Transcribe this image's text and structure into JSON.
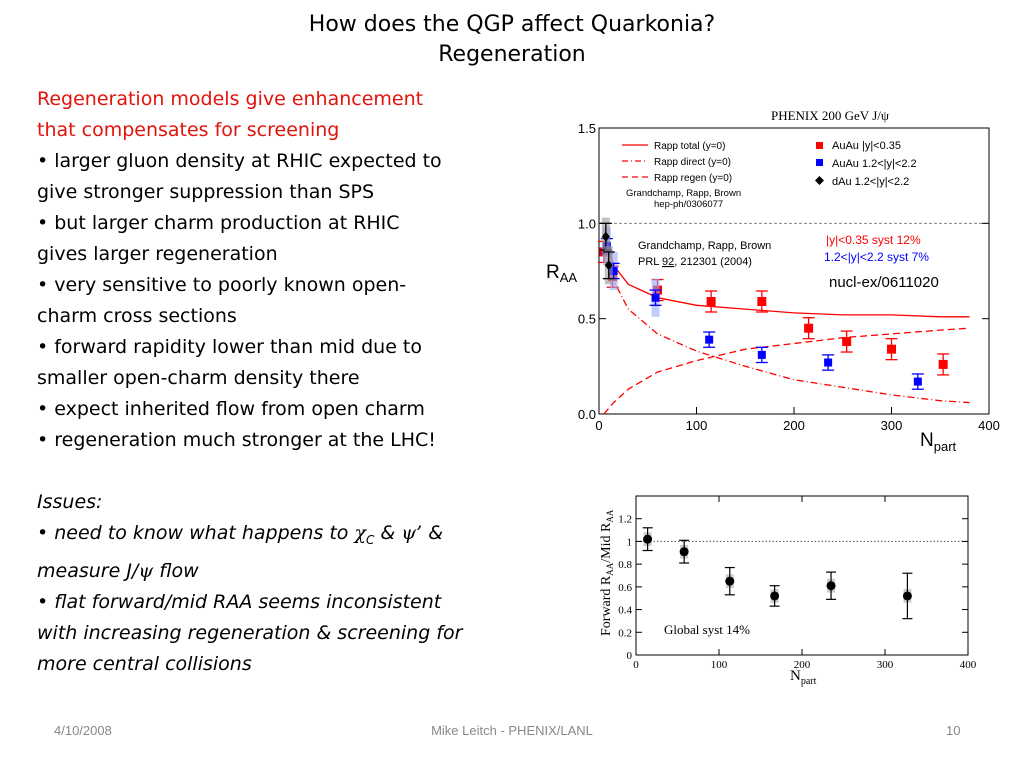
{
  "slide": {
    "title_line1": "How does the QGP affect Quarkonia?",
    "title_line2": "Regeneration",
    "red_line1": "Regeneration models give enhancement",
    "red_line2": "that compensates for screening",
    "lines": [
      "• larger gluon density at RHIC expected to",
      "give stronger suppression than SPS",
      "• but larger charm production at RHIC",
      "gives larger regeneration",
      "• very sensitive to poorly known open-",
      "charm cross sections",
      "• forward rapidity lower than mid due to",
      "smaller open-charm density there",
      "• expect inherited flow from open charm",
      "• regeneration much stronger at the LHC!"
    ],
    "issues_heading": "Issues:",
    "issue1_prefix": "• need to know what happens to",
    "chi": "χ",
    "chi_sub": "C",
    "amp1": "&",
    "psi_prime": "ψ’",
    "amp2": "&",
    "issue1_line2_prefix": "measure J/",
    "psi": "ψ",
    "issue1_line2_suffix": "flow",
    "issue2_lines": [
      "• flat forward/mid RAA seems inconsistent",
      "with increasing regeneration & screening for",
      "more central collisions"
    ]
  },
  "footer": {
    "date": "4/10/2008",
    "author": "Mike Leitch - PHENIX/LANL",
    "page": "10"
  },
  "chart_top": {
    "header": "PHENIX 200 GeV J/ψ",
    "y_ticks": [
      "0.0",
      "0.5",
      "1.0",
      "1.5"
    ],
    "x_ticks": [
      "0",
      "100",
      "200",
      "300",
      "400"
    ],
    "ylabel": "R",
    "ylabel_sub": "AA",
    "xlabel": "N",
    "xlabel_sub": "part",
    "legend_left": [
      "Rapp total (y=0)",
      "Rapp direct (y=0)",
      "Rapp regen (y=0)"
    ],
    "legend_ref1": "Grandchamp, Rapp, Brown",
    "legend_ref2": "hep-ph/0306077",
    "legend_right": [
      "AuAu |y|<0.35",
      "AuAu 1.2<|y|<2.2",
      "dAu 1.2<|y|<2.2"
    ],
    "ref_line1": "Grandchamp, Rapp, Brown",
    "ref_line2_prefix": "PRL ",
    "ref_line2_vol": "92",
    "ref_line2_suffix": ", 212301 (2004)",
    "syst_red": "|y|<0.35 syst 12%",
    "syst_blue": "1.2<|y|<2.2 syst 7%",
    "nucl": "nucl-ex/0611020"
  },
  "chart_bottom": {
    "y_ticks": [
      "0",
      "0.2",
      "0.4",
      "0.6",
      "0.8",
      "1",
      "1.2"
    ],
    "x_ticks": [
      "0",
      "100",
      "200",
      "300",
      "400"
    ],
    "ylabel": "Forward R",
    "ylabel_sub1": "AA",
    "ylabel_mid": "/Mid R",
    "ylabel_sub2": "AA",
    "xlabel": "N",
    "xlabel_sub": "part",
    "syst_note": "Global syst 14%"
  },
  "chart_data": [
    {
      "type": "scatter",
      "title": "PHENIX 200 GeV J/ψ",
      "xlabel": "Npart",
      "ylabel": "RAA",
      "xlim": [
        0,
        400
      ],
      "ylim": [
        0,
        1.5
      ],
      "series": [
        {
          "name": "AuAu |y|<0.35",
          "color": "#ff0000",
          "x": [
            5,
            14,
            60,
            115,
            167,
            215,
            254,
            300,
            353
          ],
          "y": [
            0.85,
            0.72,
            0.65,
            0.59,
            0.59,
            0.45,
            0.38,
            0.34,
            0.26
          ]
        },
        {
          "name": "AuAu 1.2<|y|<2.2",
          "color": "#0000ff",
          "x": [
            8,
            15,
            58,
            113,
            167,
            235,
            327
          ],
          "y": [
            0.88,
            0.75,
            0.61,
            0.39,
            0.31,
            0.27,
            0.17
          ]
        },
        {
          "name": "dAu 1.2<|y|<2.2",
          "color": "#000000",
          "x": [
            7,
            10
          ],
          "y": [
            0.93,
            0.78
          ]
        },
        {
          "name": "Rapp total (y=0)",
          "color": "#ff0000",
          "x": [
            5,
            15,
            30,
            60,
            100,
            150,
            200,
            250,
            300,
            350,
            380
          ],
          "y": [
            0.95,
            0.78,
            0.68,
            0.61,
            0.57,
            0.55,
            0.53,
            0.52,
            0.52,
            0.51,
            0.51
          ]
        },
        {
          "name": "Rapp direct (y=0)",
          "color": "#ff0000",
          "x": [
            5,
            15,
            30,
            60,
            100,
            150,
            200,
            250,
            300,
            350,
            380
          ],
          "y": [
            0.95,
            0.7,
            0.55,
            0.42,
            0.33,
            0.25,
            0.18,
            0.14,
            0.1,
            0.07,
            0.06
          ]
        },
        {
          "name": "Rapp regen (y=0)",
          "color": "#ff0000",
          "x": [
            5,
            15,
            30,
            60,
            100,
            150,
            200,
            250,
            300,
            350,
            380
          ],
          "y": [
            0.0,
            0.06,
            0.13,
            0.22,
            0.28,
            0.34,
            0.37,
            0.4,
            0.42,
            0.44,
            0.45
          ]
        }
      ]
    },
    {
      "type": "scatter",
      "xlabel": "Npart",
      "ylabel": "Forward RAA/Mid RAA",
      "xlim": [
        0,
        400
      ],
      "ylim": [
        0,
        1.4
      ],
      "series": [
        {
          "color": "#000000",
          "x": [
            14,
            58,
            113,
            167,
            235,
            327
          ],
          "y": [
            1.02,
            0.91,
            0.65,
            0.52,
            0.61,
            0.52
          ],
          "err": [
            0.1,
            0.1,
            0.12,
            0.09,
            0.12,
            0.2
          ]
        }
      ]
    }
  ]
}
